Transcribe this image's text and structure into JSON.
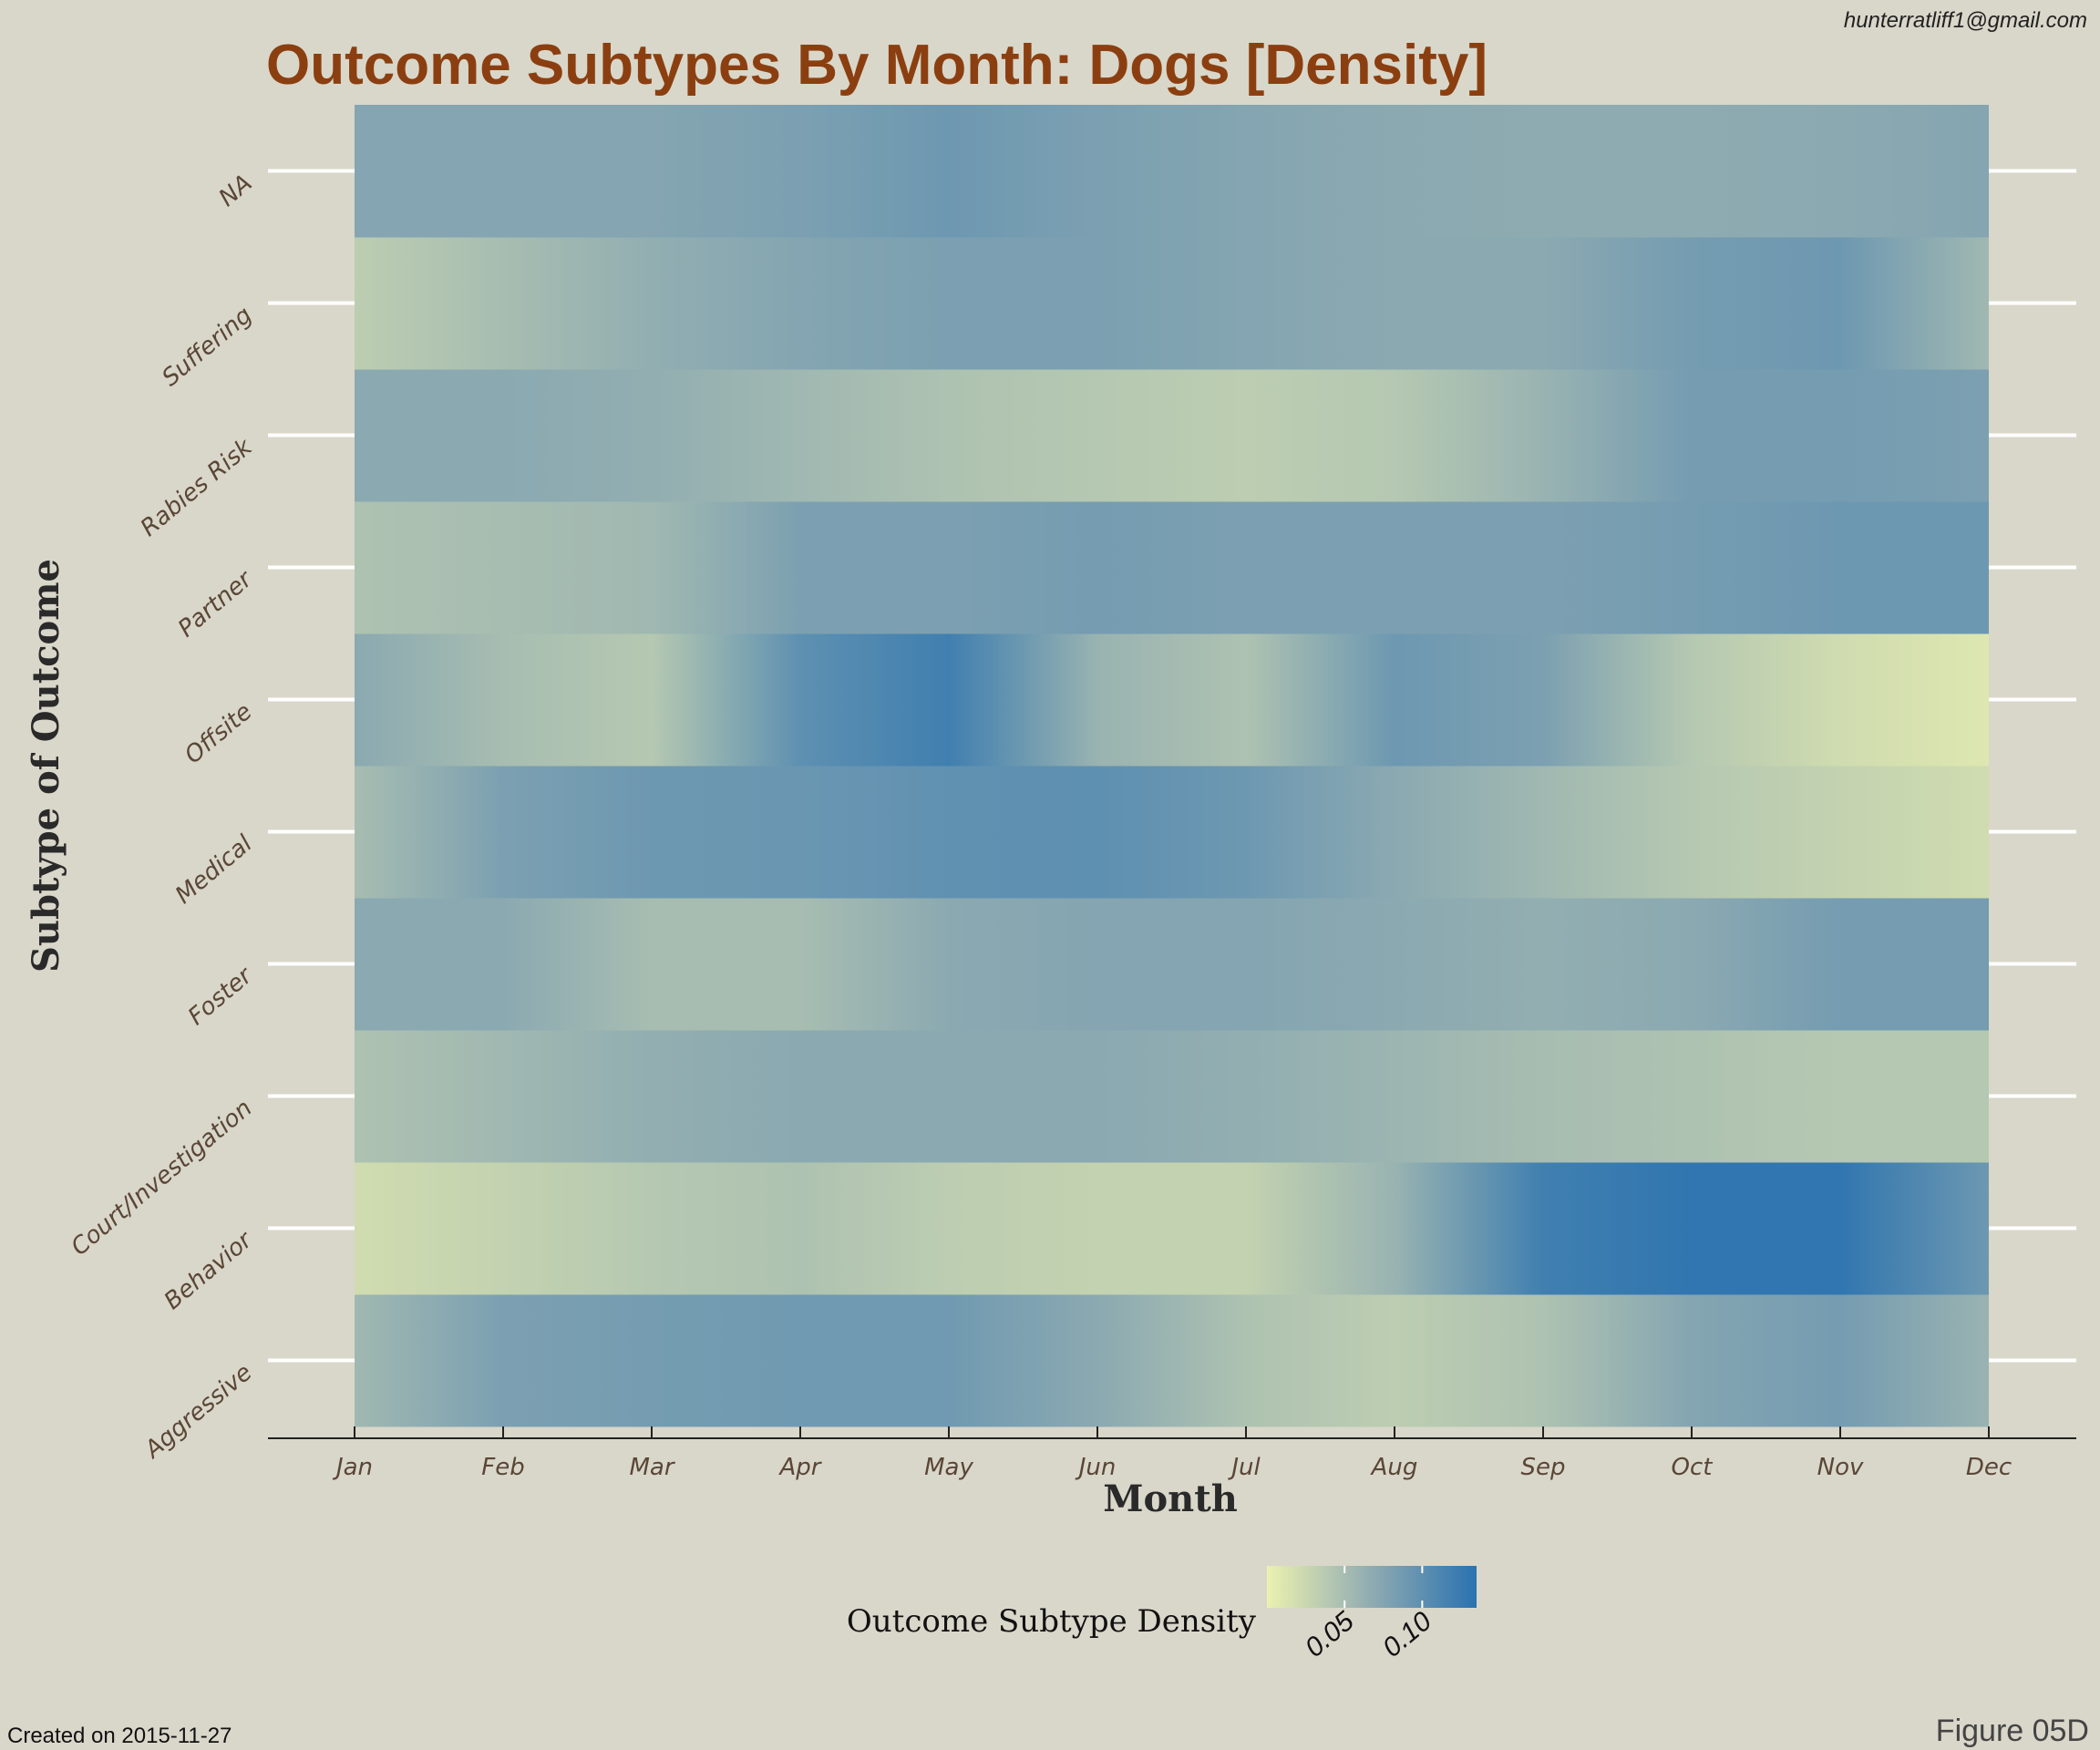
{
  "header": {
    "author_email": "hunterratliff1@gmail.com"
  },
  "footer": {
    "created": "Created on 2015-11-27",
    "figure": "Figure 05D"
  },
  "colors": {
    "title": "#8b3f10",
    "background": "#d9d7ca",
    "low": "#ecf1b0",
    "mid": "#8fabb1",
    "high": "#2a72b0",
    "gridline": "#ffffff"
  },
  "chart_data": {
    "type": "heatmap",
    "title": "Outcome Subtypes By Month: Dogs [Density]",
    "xlabel": "Month",
    "ylabel": "Subtype of Outcome",
    "x_categories": [
      "Jan",
      "Feb",
      "Mar",
      "Apr",
      "May",
      "Jun",
      "Jul",
      "Aug",
      "Sep",
      "Oct",
      "Nov",
      "Dec"
    ],
    "y_categories": [
      "Aggressive",
      "Behavior",
      "Court/Investigation",
      "Foster",
      "Medical",
      "Offsite",
      "Partner",
      "Rabies Risk",
      "Suffering",
      "NA"
    ],
    "value_label": "Outcome Subtype Density",
    "color_scale": {
      "low": "#ecf1b0",
      "mid": "#8fabb1",
      "high": "#2a72b0",
      "range": [
        0.0,
        0.135
      ],
      "ticks": [
        0.05,
        0.1
      ],
      "tick_labels": [
        "0.05",
        "0.10"
      ]
    },
    "values": {
      "Aggressive": [
        0.055,
        0.08,
        0.085,
        0.088,
        0.088,
        0.07,
        0.045,
        0.035,
        0.045,
        0.075,
        0.085,
        0.06
      ],
      "Behavior": [
        0.02,
        0.03,
        0.04,
        0.045,
        0.035,
        0.03,
        0.03,
        0.06,
        0.12,
        0.13,
        0.13,
        0.09
      ],
      "Court/Investigation": [
        0.045,
        0.055,
        0.065,
        0.07,
        0.07,
        0.07,
        0.065,
        0.058,
        0.05,
        0.045,
        0.04,
        0.04
      ],
      "Foster": [
        0.07,
        0.07,
        0.05,
        0.05,
        0.07,
        0.075,
        0.075,
        0.07,
        0.065,
        0.07,
        0.085,
        0.085
      ],
      "Medical": [
        0.05,
        0.08,
        0.09,
        0.092,
        0.098,
        0.1,
        0.09,
        0.07,
        0.055,
        0.04,
        0.03,
        0.02
      ],
      "Offsite": [
        0.07,
        0.05,
        0.04,
        0.1,
        0.12,
        0.06,
        0.045,
        0.09,
        0.08,
        0.04,
        0.02,
        0.01
      ],
      "Partner": [
        0.045,
        0.05,
        0.055,
        0.08,
        0.08,
        0.085,
        0.08,
        0.08,
        0.08,
        0.085,
        0.09,
        0.09
      ],
      "Rabies Risk": [
        0.07,
        0.07,
        0.065,
        0.055,
        0.045,
        0.04,
        0.035,
        0.04,
        0.06,
        0.085,
        0.085,
        0.08
      ],
      "Suffering": [
        0.035,
        0.05,
        0.065,
        0.075,
        0.08,
        0.08,
        0.075,
        0.07,
        0.07,
        0.085,
        0.09,
        0.055
      ],
      "NA": [
        0.075,
        0.075,
        0.075,
        0.08,
        0.09,
        0.08,
        0.075,
        0.07,
        0.068,
        0.068,
        0.07,
        0.075
      ]
    }
  }
}
